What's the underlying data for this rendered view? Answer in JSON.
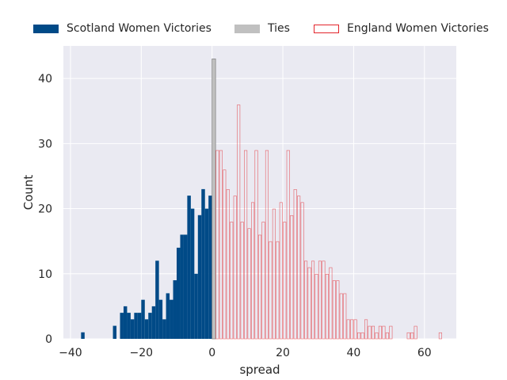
{
  "chart_data": {
    "type": "bar",
    "xlabel": "spread",
    "ylabel": "Count",
    "xlim": [
      -42,
      69
    ],
    "ylim": [
      0,
      45
    ],
    "xticks": [
      -40,
      -20,
      0,
      20,
      40,
      60
    ],
    "xtick_labels": [
      "−40",
      "−20",
      "0",
      "20",
      "40",
      "60"
    ],
    "yticks": [
      0,
      10,
      20,
      30,
      40
    ],
    "ytick_labels": [
      "0",
      "10",
      "20",
      "30",
      "40"
    ],
    "bin_width": 1,
    "grid": true,
    "legend_placement": "top-center",
    "series": [
      {
        "name": "Scotland Women Victories",
        "style": "filled",
        "color": "#004a87",
        "x": [
          -37,
          -28,
          -26,
          -25,
          -24,
          -23,
          -22,
          -21,
          -20,
          -19,
          -18,
          -17,
          -16,
          -15,
          -14,
          -13,
          -12,
          -11,
          -10,
          -9,
          -8,
          -7,
          -6,
          -5,
          -4,
          -3,
          -2,
          -1
        ],
        "values": [
          1,
          2,
          4,
          5,
          4,
          3,
          4,
          4,
          6,
          3,
          4,
          5,
          12,
          6,
          3,
          7,
          6,
          9,
          14,
          16,
          16,
          22,
          20,
          10,
          19,
          23,
          20,
          22
        ]
      },
      {
        "name": "Ties",
        "style": "filled",
        "color": "#c0c0c0",
        "x": [
          0
        ],
        "values": [
          43
        ]
      },
      {
        "name": "England Women Victories",
        "style": "outline",
        "color": "#e3242b",
        "x": [
          1,
          2,
          3,
          4,
          5,
          6,
          7,
          8,
          9,
          10,
          11,
          12,
          13,
          14,
          15,
          16,
          17,
          18,
          19,
          20,
          21,
          22,
          23,
          24,
          25,
          26,
          27,
          28,
          29,
          30,
          31,
          32,
          33,
          34,
          35,
          36,
          37,
          38,
          39,
          40,
          41,
          42,
          43,
          44,
          45,
          46,
          47,
          48,
          49,
          50,
          51,
          52,
          53,
          54,
          55,
          56,
          57,
          58,
          59,
          60,
          61,
          62,
          63,
          64
        ],
        "values": [
          29,
          29,
          26,
          23,
          18,
          22,
          36,
          18,
          29,
          17,
          21,
          29,
          16,
          18,
          29,
          15,
          20,
          15,
          21,
          18,
          29,
          19,
          23,
          22,
          21,
          12,
          11,
          12,
          10,
          12,
          12,
          10,
          11,
          9,
          9,
          7,
          7,
          3,
          3,
          3,
          1,
          1,
          3,
          2,
          2,
          1,
          2,
          2,
          1,
          2,
          0,
          0,
          0,
          0,
          1,
          1,
          2,
          0,
          0,
          0,
          0,
          0,
          0,
          1
        ]
      }
    ]
  }
}
